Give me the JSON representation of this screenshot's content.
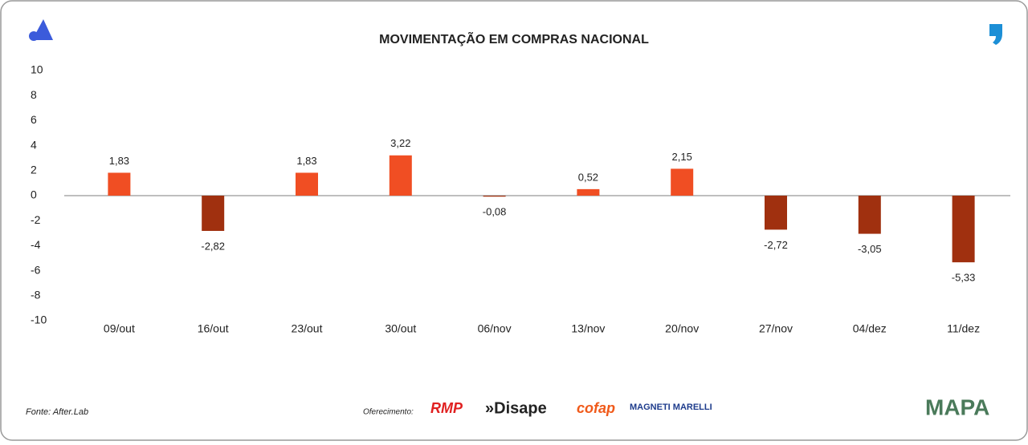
{
  "chart_data": {
    "type": "bar",
    "title": "MOVIMENTAÇÃO EM COMPRAS NACIONAL",
    "categories": [
      "09/out",
      "16/out",
      "23/out",
      "30/out",
      "06/nov",
      "13/nov",
      "20/nov",
      "27/nov",
      "04/dez",
      "11/dez"
    ],
    "values": [
      1.83,
      -2.82,
      1.83,
      3.22,
      -0.08,
      0.52,
      2.15,
      -2.72,
      -3.05,
      -5.33
    ],
    "value_labels": [
      "1,83",
      "-2,82",
      "1,83",
      "3,22",
      "-0,08",
      "0,52",
      "2,15",
      "-2,72",
      "-3,05",
      "-5,33"
    ],
    "positive_color": "#f04e23",
    "negative_color": "#a0300f",
    "ylim": [
      -10,
      10
    ],
    "yticks": [
      -10,
      -8,
      -6,
      -4,
      -2,
      0,
      2,
      4,
      6,
      8,
      10
    ]
  },
  "footer": {
    "source": "Fonte: After.Lab",
    "sponsor_label": "Oferecimento:",
    "sponsors": [
      "RMP",
      "»Disape",
      "cofap",
      "MAGNETI MARELLI"
    ],
    "brand": "MAPA"
  }
}
